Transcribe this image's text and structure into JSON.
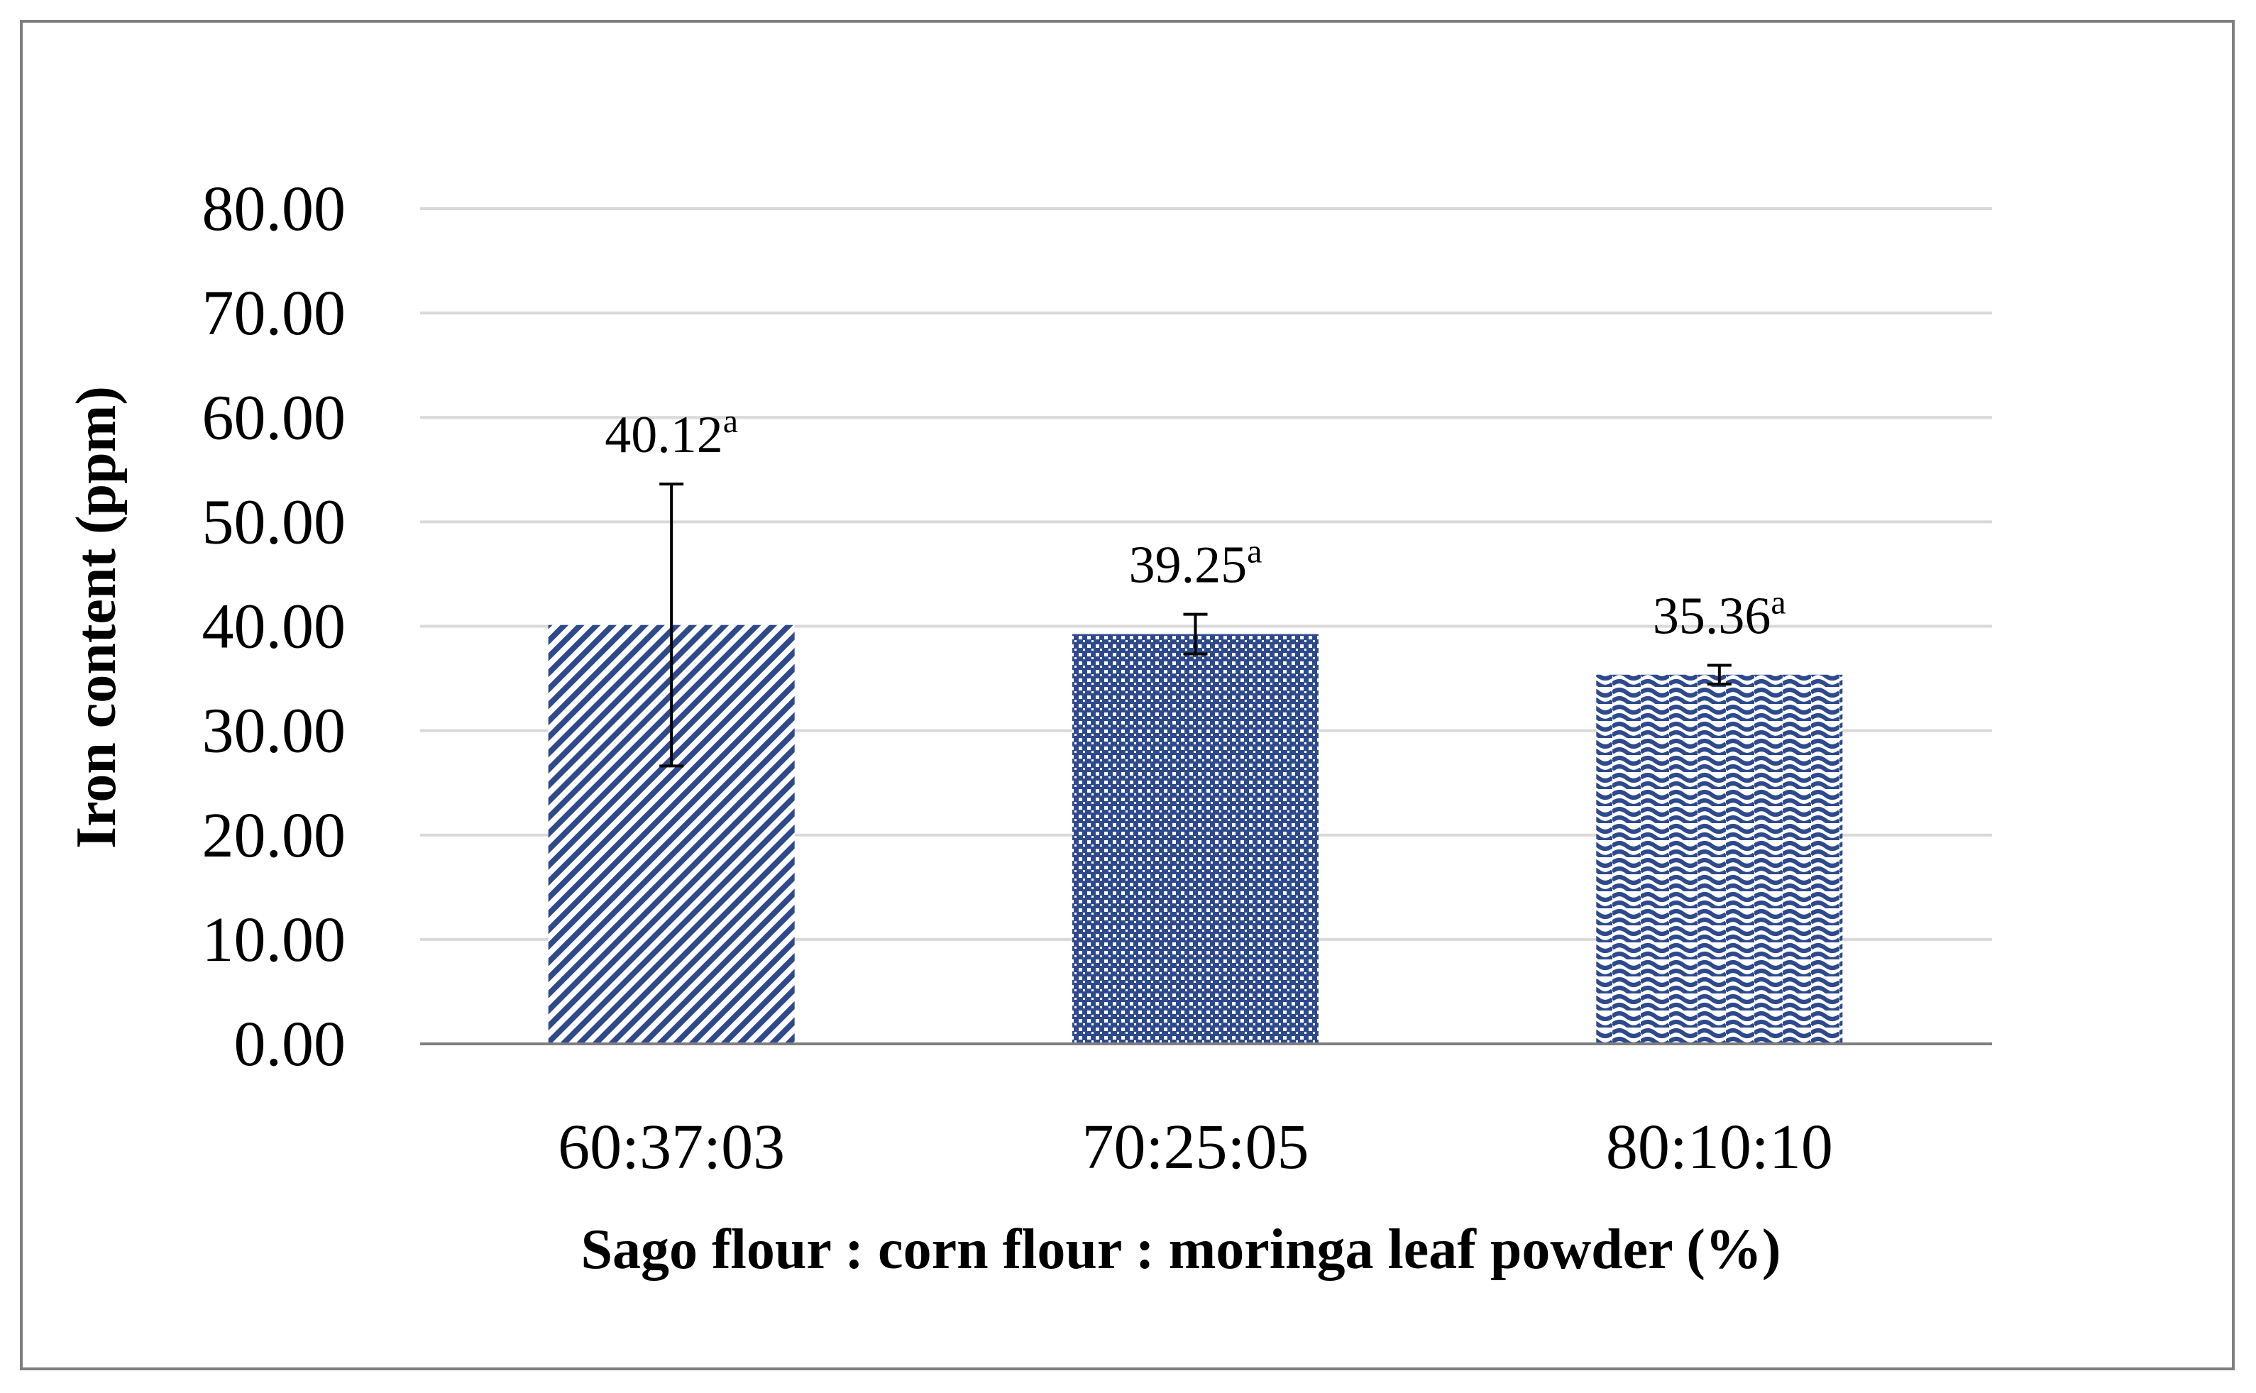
{
  "chart_data": {
    "type": "bar",
    "title": "",
    "xlabel": "Sago flour : corn flour : moringa leaf powder (%)",
    "ylabel": "Iron content (ppm)",
    "ylim": [
      0,
      80
    ],
    "yticks": [
      "0.00",
      "10.00",
      "20.00",
      "30.00",
      "40.00",
      "50.00",
      "60.00",
      "70.00",
      "80.00"
    ],
    "grid": true,
    "categories": [
      "60:37:03",
      "70:25:05",
      "80:10:10"
    ],
    "values": [
      40.12,
      39.25,
      35.36
    ],
    "error": [
      13.5,
      1.9,
      0.9
    ],
    "value_labels": [
      "40.12",
      "39.25",
      "35.36"
    ],
    "significance": [
      "a",
      "a",
      "a"
    ],
    "patterns": [
      "diagonal",
      "dotted-grid",
      "wave"
    ],
    "colors": {
      "bar": "#2e4a8c",
      "grid": "#d9d9d9",
      "axis": "#7f7f7f",
      "error_bar": "#000000"
    }
  }
}
